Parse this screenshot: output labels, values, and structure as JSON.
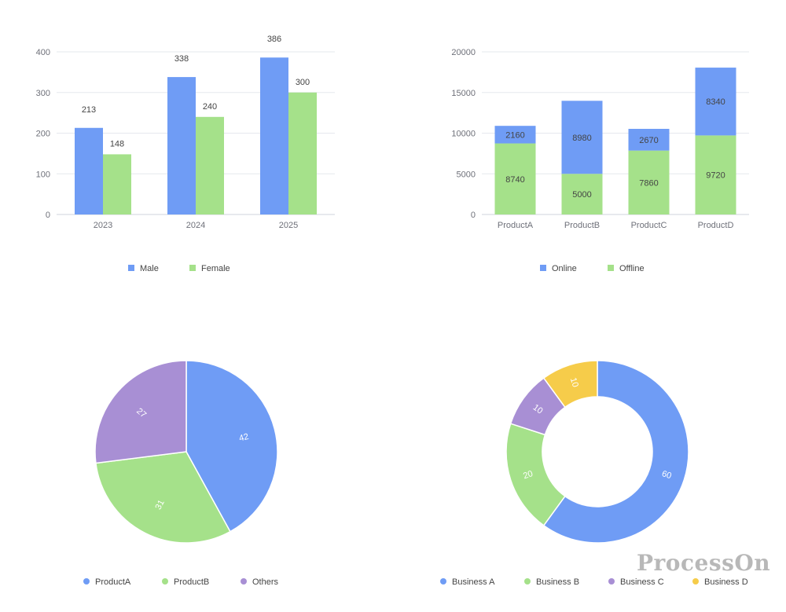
{
  "chart_data": [
    {
      "type": "bar",
      "categories": [
        "2023",
        "2024",
        "2025"
      ],
      "series": [
        {
          "name": "Male",
          "values": [
            213,
            338,
            386
          ],
          "color": "#6f9cf5"
        },
        {
          "name": "Female",
          "values": [
            148,
            240,
            300
          ],
          "color": "#a5e18a"
        }
      ],
      "ylim": [
        0,
        400
      ],
      "yticks": [
        0,
        100,
        200,
        300,
        400
      ],
      "grid": true,
      "legend": "bottom-center"
    },
    {
      "type": "bar",
      "stacked": true,
      "categories": [
        "ProductA",
        "ProductB",
        "ProductC",
        "ProductD"
      ],
      "series": [
        {
          "name": "Online",
          "values": [
            2160,
            8980,
            2670,
            8340
          ],
          "color": "#6f9cf5"
        },
        {
          "name": "Offline",
          "values": [
            8740,
            5000,
            7860,
            9720
          ],
          "color": "#a5e18a"
        }
      ],
      "ylim": [
        0,
        20000
      ],
      "yticks": [
        0,
        5000,
        10000,
        15000,
        20000
      ],
      "grid": true,
      "legend": "bottom-center"
    },
    {
      "type": "pie",
      "slices": [
        {
          "name": "ProductA",
          "value": 42,
          "color": "#6f9cf5"
        },
        {
          "name": "ProductB",
          "value": 31,
          "color": "#a5e18a"
        },
        {
          "name": "Others",
          "value": 27,
          "color": "#a88fd4"
        }
      ],
      "legend": "bottom-center"
    },
    {
      "type": "pie",
      "donut": true,
      "slices": [
        {
          "name": "Business A",
          "value": 60,
          "color": "#6f9cf5"
        },
        {
          "name": "Business B",
          "value": 20,
          "color": "#a5e18a"
        },
        {
          "name": "Business C",
          "value": 10,
          "color": "#a88fd4"
        },
        {
          "name": "Business D",
          "value": 10,
          "color": "#f6cc4a"
        }
      ],
      "legend": "bottom-center"
    }
  ],
  "watermark": "ProcessOn"
}
